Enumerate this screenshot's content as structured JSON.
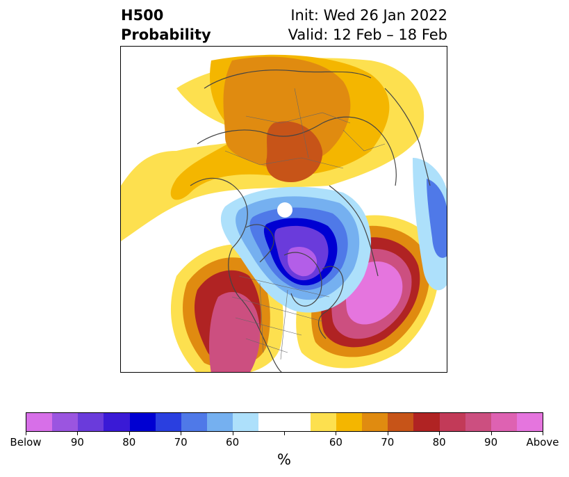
{
  "title": {
    "line1": "H500",
    "line2": "Probability",
    "init": "Init: Wed 26 Jan 2022",
    "valid": "Valid: 12 Feb – 18 Feb"
  },
  "colorbar": {
    "unit": "%",
    "colors": [
      "#d76fe8",
      "#9b55e0",
      "#6a3bdb",
      "#3a1ad6",
      "#0000d2",
      "#2a3fe0",
      "#4f79e8",
      "#75b0f0",
      "#ade0fb",
      "#ffffff",
      "#ffffff",
      "#fde04f",
      "#f4b600",
      "#e08b10",
      "#c75418",
      "#b02323",
      "#c23a58",
      "#cc4f80",
      "#de62b2",
      "#e575de"
    ],
    "ticks": [
      "Below",
      "90",
      "80",
      "70",
      "60",
      "",
      "60",
      "70",
      "80",
      "90",
      "Above"
    ]
  },
  "map": {
    "projection": "polar-stereographic",
    "center": "North Pole",
    "colors": {
      "above_60": "#fde04f",
      "above_65": "#f4b600",
      "above_70": "#e08b10",
      "above_75": "#c75418",
      "above_80": "#b02323",
      "above_85": "#c23a58",
      "above_90": "#cc4f80",
      "above_95": "#e575de",
      "below_60": "#ade0fb",
      "below_65": "#75b0f0",
      "below_70": "#4f79e8",
      "below_75": "#2a3fe0",
      "below_80": "#0000d2",
      "below_90": "#6a3bdb",
      "below_95": "#b35ee8"
    }
  }
}
